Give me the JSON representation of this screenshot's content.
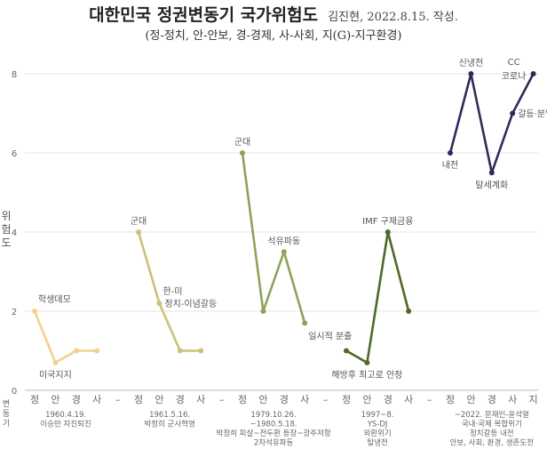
{
  "title": "대한민국 정권변동기 국가위험도",
  "author": "김진현, 2022.8.15. 작성.",
  "subtitle": "(정-정치, 안-안보, 경-경제, 사-사회, 지(G)-지구환경)",
  "ylabel_chars": [
    "위",
    "험",
    "도"
  ],
  "xlabel_chars": [
    "변",
    "동",
    "기"
  ],
  "chart_data": {
    "type": "line",
    "ylim": [
      0,
      8
    ],
    "yticks": [
      0,
      2,
      4,
      6,
      8
    ],
    "grid": true,
    "tick_labels": [
      "정",
      "안",
      "경",
      "사",
      "–",
      "정",
      "안",
      "경",
      "사",
      "–",
      "정",
      "안",
      "경",
      "사",
      "–",
      "정",
      "안",
      "경",
      "사",
      "–",
      "정",
      "안",
      "경",
      "사",
      "지"
    ],
    "series": [
      {
        "color": "#f2d28c",
        "x": [
          0,
          1,
          2,
          3
        ],
        "y": [
          2,
          0.7,
          1,
          1
        ],
        "period": [
          "1960.4.19.",
          "이승만 자진퇴진"
        ],
        "annotations": [
          {
            "i": 0,
            "text": "학생데모",
            "pos": "right-above"
          },
          {
            "i": 1,
            "text": "미국지지",
            "pos": "below"
          }
        ]
      },
      {
        "color": "#cbc17a",
        "x": [
          5,
          6,
          7,
          8
        ],
        "y": [
          4,
          2.2,
          1,
          1
        ],
        "period": [
          "1961.5.16.",
          "박정희 군사혁명"
        ],
        "annotations": [
          {
            "i": 0,
            "text": "군대",
            "pos": "above"
          },
          {
            "i": 1,
            "text": "한-미",
            "pos": "right-above"
          },
          {
            "i": 1,
            "text": "정치-이념갈등",
            "pos": "right"
          }
        ]
      },
      {
        "color": "#8ea35a",
        "x": [
          10,
          11,
          12,
          13
        ],
        "y": [
          6,
          2,
          3.5,
          1.7
        ],
        "period": [
          "1979.10.26.",
          "~1980.5.18.",
          "박정희 피살~전두환 등장~광주저항",
          "2차석유파동"
        ],
        "annotations": [
          {
            "i": 0,
            "text": "군대",
            "pos": "above"
          },
          {
            "i": 2,
            "text": "석유파동",
            "pos": "above"
          },
          {
            "i": 3,
            "text": "일시적 분출",
            "pos": "right-below"
          }
        ]
      },
      {
        "color": "#4f6a27",
        "x": [
          15,
          16,
          17,
          18
        ],
        "y": [
          1,
          0.7,
          4,
          2
        ],
        "period": [
          "1997~8.",
          "YS-DJ",
          "외환위기",
          "탈냉전"
        ],
        "annotations": [
          {
            "i": 2,
            "text": "IMF 구제금융",
            "pos": "above"
          },
          {
            "i": 1,
            "text": "해방후 최고로 안정",
            "pos": "below"
          }
        ]
      },
      {
        "color": "#2c2c5a",
        "x": [
          20,
          21,
          22,
          23,
          24
        ],
        "y": [
          6,
          8,
          5.5,
          7,
          8
        ],
        "period": [
          "~2022. 문재인-윤석열",
          "국내·국제 복합위기",
          "정치갈등 내전",
          "안보, 사회, 환경, 생존도전"
        ],
        "annotations": [
          {
            "i": 0,
            "text": "내전",
            "pos": "below"
          },
          {
            "i": 1,
            "text": "신냉전",
            "pos": "above"
          },
          {
            "i": 2,
            "text": "탈세계화",
            "pos": "below"
          },
          {
            "i": 3,
            "text": "갈등·분열",
            "pos": "right"
          },
          {
            "i": 4,
            "text": "CC",
            "pos": "left-above"
          },
          {
            "i": 4,
            "text": "코로나",
            "pos": "left"
          }
        ]
      }
    ]
  }
}
